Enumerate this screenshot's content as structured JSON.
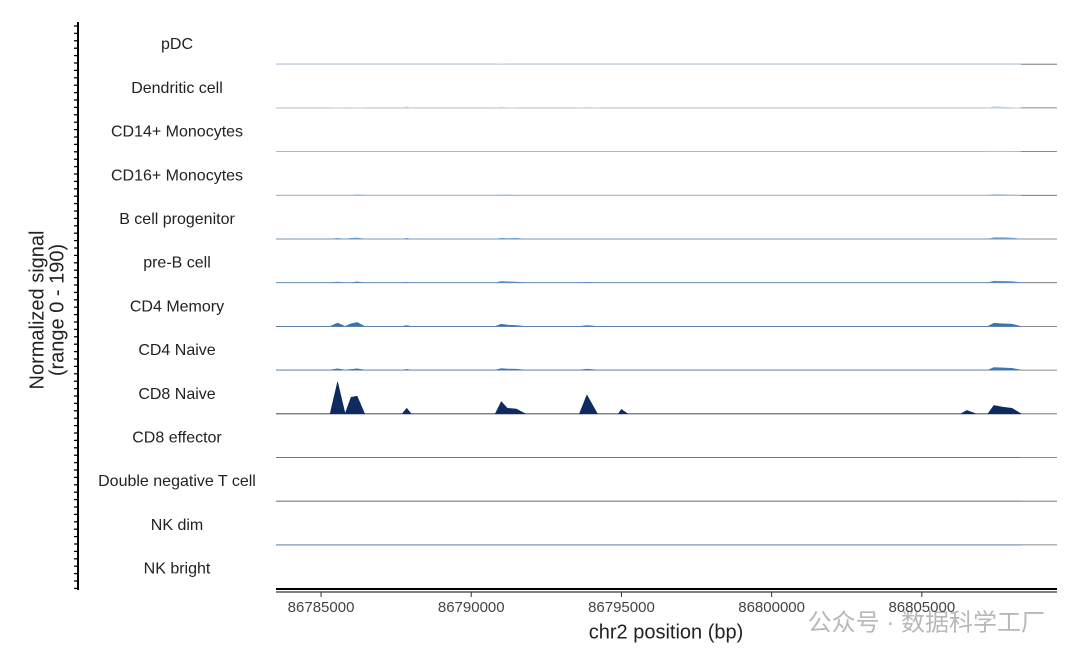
{
  "chart_data": {
    "type": "coverage",
    "ylabel": [
      "Normalized signal",
      "(range 0 - 190)"
    ],
    "xlabel": "chr2 position (bp)",
    "watermark": "公众号 · 数据科学工厂",
    "xlim": [
      86783500,
      86809500
    ],
    "xticks": [
      86785000,
      86790000,
      86795000,
      86800000,
      86805000
    ],
    "ylim": [
      0,
      190
    ],
    "x": [
      86783500,
      86785300,
      86785550,
      86785800,
      86786000,
      86786200,
      86786450,
      86787700,
      86787850,
      86788000,
      86790800,
      86791000,
      86791200,
      86791500,
      86791800,
      86793600,
      86793850,
      86794200,
      86794900,
      86795000,
      86795200,
      86806300,
      86806500,
      86806800,
      86807200,
      86807400,
      86807700,
      86808000,
      86808300
    ],
    "series": [
      {
        "name": "pDC",
        "color": "#c9d9ea",
        "values": [
          0,
          0,
          0,
          0,
          0,
          0,
          0,
          0,
          0,
          0,
          0,
          3,
          0,
          0,
          0,
          0,
          0,
          0,
          0,
          0,
          0,
          0,
          0,
          0,
          0,
          0,
          0,
          0,
          0
        ]
      },
      {
        "name": "Dendritic cell",
        "color": "#c3d6ea",
        "values": [
          0,
          0,
          2,
          0,
          0,
          2,
          0,
          0,
          6,
          0,
          0,
          3,
          2,
          0,
          0,
          0,
          3,
          0,
          0,
          0,
          0,
          0,
          0,
          0,
          0,
          6,
          4,
          2,
          0
        ]
      },
      {
        "name": "CD14+ Monocytes",
        "color": "#b4cbe4",
        "values": [
          0,
          0,
          0,
          0,
          0,
          0,
          0,
          0,
          0,
          0,
          0,
          0,
          0,
          0,
          0,
          0,
          0,
          0,
          0,
          0,
          0,
          0,
          0,
          0,
          0,
          2,
          2,
          0,
          0
        ]
      },
      {
        "name": "CD16+ Monocytes",
        "color": "#a5c1e0",
        "values": [
          0,
          0,
          0,
          0,
          0,
          3,
          0,
          0,
          0,
          0,
          0,
          2,
          2,
          0,
          0,
          0,
          0,
          0,
          0,
          0,
          0,
          0,
          0,
          0,
          0,
          4,
          3,
          2,
          0
        ]
      },
      {
        "name": "B cell progenitor",
        "color": "#6e9dcc",
        "values": [
          0,
          0,
          3,
          0,
          3,
          5,
          0,
          0,
          3,
          0,
          0,
          3,
          2,
          3,
          0,
          0,
          0,
          0,
          0,
          0,
          0,
          0,
          0,
          0,
          0,
          6,
          6,
          4,
          0
        ]
      },
      {
        "name": "pre-B cell",
        "color": "#5a8cc0",
        "values": [
          0,
          0,
          3,
          0,
          0,
          4,
          0,
          0,
          2,
          0,
          0,
          6,
          4,
          3,
          0,
          0,
          2,
          0,
          0,
          0,
          0,
          0,
          0,
          0,
          0,
          7,
          6,
          5,
          0
        ]
      },
      {
        "name": "CD4 Memory",
        "color": "#3a73ad",
        "values": [
          0,
          0,
          15,
          0,
          12,
          18,
          0,
          0,
          4,
          0,
          0,
          10,
          6,
          4,
          0,
          0,
          4,
          0,
          0,
          0,
          0,
          0,
          0,
          0,
          0,
          14,
          12,
          10,
          0
        ]
      },
      {
        "name": "CD4 Naive",
        "color": "#3f78b2",
        "values": [
          0,
          0,
          6,
          0,
          3,
          6,
          0,
          0,
          3,
          0,
          0,
          7,
          5,
          4,
          0,
          0,
          4,
          0,
          0,
          0,
          0,
          0,
          0,
          0,
          0,
          12,
          10,
          8,
          0
        ]
      },
      {
        "name": "CD8 Naive",
        "color": "#0d2b5e",
        "values": [
          0,
          0,
          145,
          0,
          75,
          80,
          0,
          0,
          25,
          0,
          0,
          55,
          25,
          22,
          0,
          0,
          85,
          0,
          0,
          20,
          0,
          0,
          15,
          0,
          0,
          38,
          30,
          25,
          0
        ]
      },
      {
        "name": "CD8 effector",
        "color": "#2f6aa6",
        "values": [
          0,
          0,
          0,
          0,
          0,
          0,
          0,
          0,
          0,
          0,
          0,
          0,
          0,
          0,
          0,
          0,
          0,
          0,
          0,
          0,
          0,
          0,
          0,
          0,
          0,
          0,
          0,
          0,
          0
        ]
      },
      {
        "name": "Double negative T cell",
        "color": "#2f6aa6",
        "values": [
          0,
          0,
          0,
          0,
          0,
          0,
          0,
          0,
          0,
          0,
          0,
          0,
          0,
          0,
          0,
          0,
          0,
          0,
          0,
          0,
          0,
          0,
          0,
          0,
          0,
          0,
          0,
          0,
          0
        ]
      },
      {
        "name": "NK dim",
        "color": "#2f6aa6",
        "values": [
          0,
          0,
          0,
          0,
          0,
          0,
          0,
          0,
          0,
          0,
          0,
          0,
          0,
          0,
          0,
          0,
          0,
          0,
          0,
          0,
          0,
          0,
          0,
          0,
          0,
          0,
          0,
          0,
          0
        ]
      },
      {
        "name": "NK bright",
        "color": "#2f6aa6",
        "values": [
          0,
          0,
          0,
          0,
          0,
          0,
          0,
          0,
          0,
          0,
          0,
          0,
          0,
          0,
          0,
          0,
          0,
          0,
          0,
          0,
          0,
          0,
          0,
          0,
          0,
          0,
          0,
          0,
          0
        ]
      }
    ]
  }
}
